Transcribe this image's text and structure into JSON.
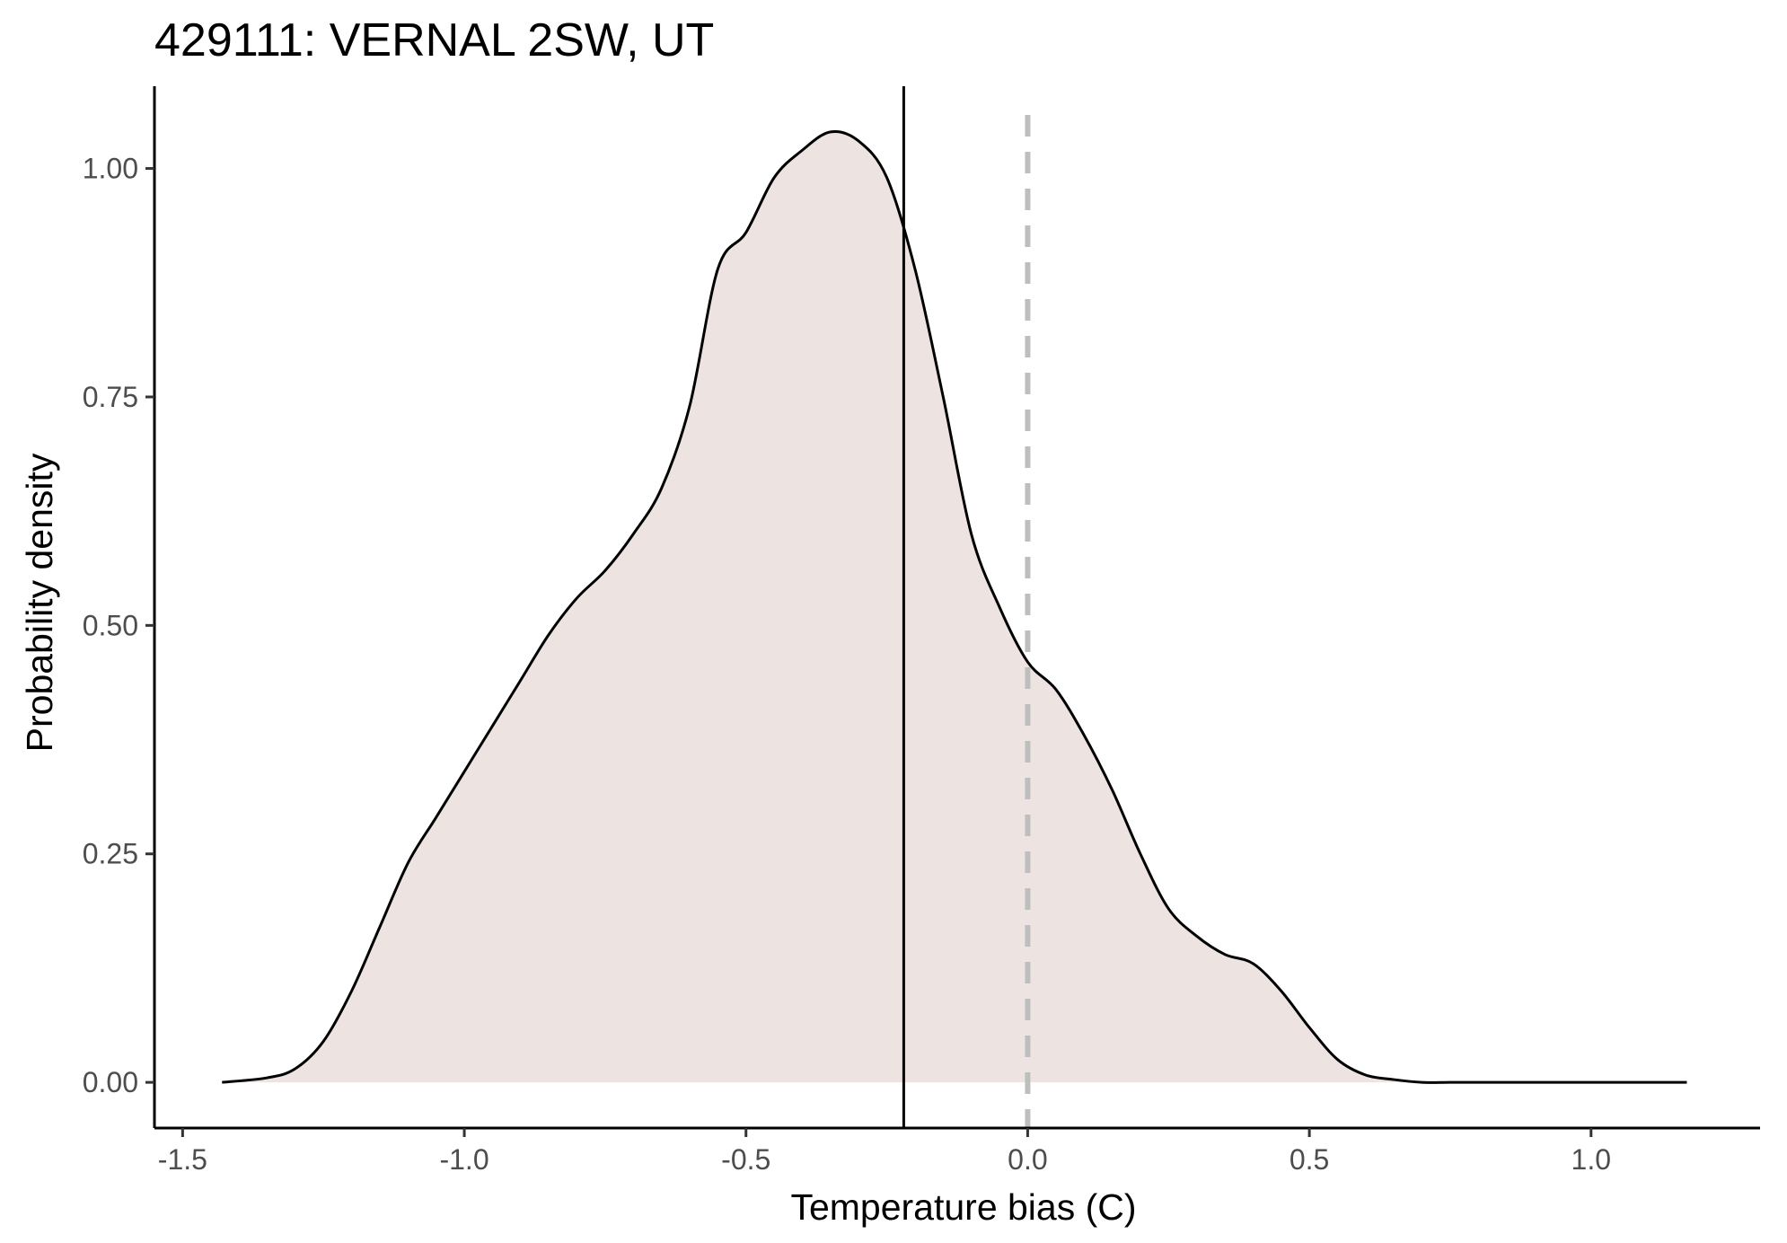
{
  "chart_data": {
    "type": "area",
    "title": "429111: VERNAL 2SW, UT",
    "xlabel": "Temperature bias (C)",
    "ylabel": "Probability density",
    "xlim": [
      -1.55,
      1.3
    ],
    "ylim": [
      -0.05,
      1.09
    ],
    "x_ticks": [
      -1.5,
      -1.0,
      -0.5,
      0.0,
      0.5,
      1.0
    ],
    "x_tick_labels": [
      "-1.5",
      "-1.0",
      "-0.5",
      "0.0",
      "0.5",
      "1.0"
    ],
    "y_ticks": [
      0.0,
      0.25,
      0.5,
      0.75,
      1.0
    ],
    "y_tick_labels": [
      "0.00",
      "0.25",
      "0.50",
      "0.75",
      "1.00"
    ],
    "grid": false,
    "fill_color": "#ede3e0",
    "line_color": "#000000",
    "reference_lines": {
      "mean": -0.22,
      "zero": 0.0,
      "mean_color": "#000000",
      "zero_color": "#bebebe"
    },
    "series": [
      {
        "x": [
          -1.43,
          -1.35,
          -1.3,
          -1.25,
          -1.2,
          -1.15,
          -1.1,
          -1.05,
          -1.0,
          -0.95,
          -0.9,
          -0.85,
          -0.8,
          -0.75,
          -0.7,
          -0.65,
          -0.6,
          -0.55,
          -0.5,
          -0.45,
          -0.4,
          -0.35,
          -0.3,
          -0.25,
          -0.2,
          -0.15,
          -0.1,
          -0.05,
          0.0,
          0.05,
          0.1,
          0.15,
          0.2,
          0.25,
          0.3,
          0.35,
          0.4,
          0.45,
          0.5,
          0.55,
          0.6,
          0.65,
          0.7,
          0.75,
          0.8,
          0.85,
          0.9,
          0.95,
          1.0,
          1.05,
          1.1,
          1.17
        ],
        "y": [
          0.0,
          0.005,
          0.015,
          0.045,
          0.1,
          0.17,
          0.24,
          0.29,
          0.34,
          0.39,
          0.44,
          0.49,
          0.53,
          0.56,
          0.6,
          0.65,
          0.74,
          0.89,
          0.93,
          0.99,
          1.02,
          1.04,
          1.03,
          0.99,
          0.89,
          0.75,
          0.6,
          0.52,
          0.46,
          0.43,
          0.38,
          0.32,
          0.25,
          0.19,
          0.16,
          0.14,
          0.13,
          0.1,
          0.06,
          0.025,
          0.008,
          0.003,
          0.0,
          0.0,
          0.0,
          0.0,
          0.0,
          0.0,
          0.0,
          0.0,
          0.0,
          0.0
        ]
      }
    ]
  }
}
